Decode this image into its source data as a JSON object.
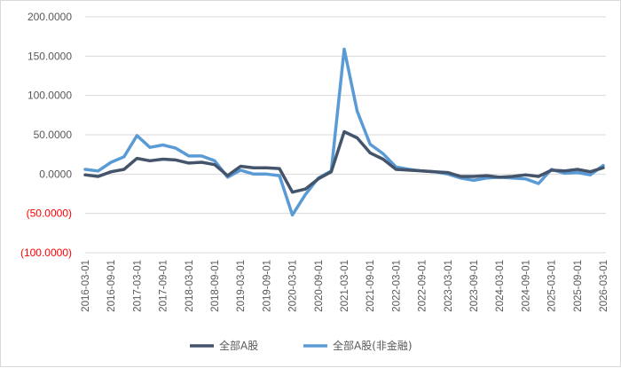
{
  "chart_data": {
    "type": "line",
    "title": "",
    "xlabel": "",
    "ylabel": "",
    "ylim": [
      -100,
      200
    ],
    "yticks": [
      200,
      150,
      100,
      50,
      0,
      -50,
      -100
    ],
    "ytick_labels": [
      "200.0000",
      "150.0000",
      "100.0000",
      "50.0000",
      "0.0000",
      "(50.0000)",
      "(100.0000)"
    ],
    "negative_label_color": "#ff0000",
    "grid": "horizontal",
    "legend_position": "bottom",
    "x_tick_labels": [
      "2016-03-01",
      "2016-09-01",
      "2017-03-01",
      "2017-09-01",
      "2018-03-01",
      "2018-09-01",
      "2019-03-01",
      "2019-09-01",
      "2020-03-01",
      "2020-09-01",
      "2021-03-01",
      "2021-09-01",
      "2022-03-01",
      "2022-09-01",
      "2023-03-01",
      "2023-09-01",
      "2024-03-01",
      "2024-09-01",
      "2025-03-01",
      "2025-09-01",
      "2026-03-01"
    ],
    "x": [
      "2016-03-01",
      "2016-06-01",
      "2016-09-01",
      "2016-12-01",
      "2017-03-01",
      "2017-06-01",
      "2017-09-01",
      "2017-12-01",
      "2018-03-01",
      "2018-06-01",
      "2018-09-01",
      "2018-12-01",
      "2019-03-01",
      "2019-06-01",
      "2019-09-01",
      "2019-12-01",
      "2020-03-01",
      "2020-06-01",
      "2020-09-01",
      "2020-12-01",
      "2021-03-01",
      "2021-06-01",
      "2021-09-01",
      "2021-12-01",
      "2022-03-01",
      "2022-06-01",
      "2022-09-01",
      "2022-12-01",
      "2023-03-01",
      "2023-06-01",
      "2023-09-01",
      "2023-12-01",
      "2024-03-01",
      "2024-06-01",
      "2024-09-01",
      "2024-12-01",
      "2025-03-01",
      "2025-06-01",
      "2025-09-01",
      "2025-12-01",
      "2026-03-01"
    ],
    "series": [
      {
        "name": "全部A股",
        "color": "#44546a",
        "values": [
          -1,
          -3,
          3,
          6,
          20,
          17,
          19,
          18,
          14,
          15,
          12,
          -2,
          10,
          8,
          8,
          7,
          -23,
          -19,
          -6,
          3,
          54,
          46,
          27,
          19,
          6,
          5,
          4,
          3,
          2,
          -3,
          -3,
          -2,
          -4,
          -3,
          -1,
          -3,
          5,
          4,
          6,
          3,
          8
        ]
      },
      {
        "name": "全部A股(非金融)",
        "color": "#5b9bd5",
        "values": [
          6,
          4,
          15,
          22,
          49,
          34,
          37,
          33,
          23,
          23,
          17,
          -4,
          5,
          0,
          0,
          -2,
          -52,
          -26,
          -5,
          4,
          159,
          80,
          38,
          26,
          9,
          6,
          4,
          3,
          0,
          -5,
          -8,
          -5,
          -4,
          -5,
          -6,
          -12,
          6,
          1,
          2,
          -1,
          11
        ]
      }
    ]
  }
}
